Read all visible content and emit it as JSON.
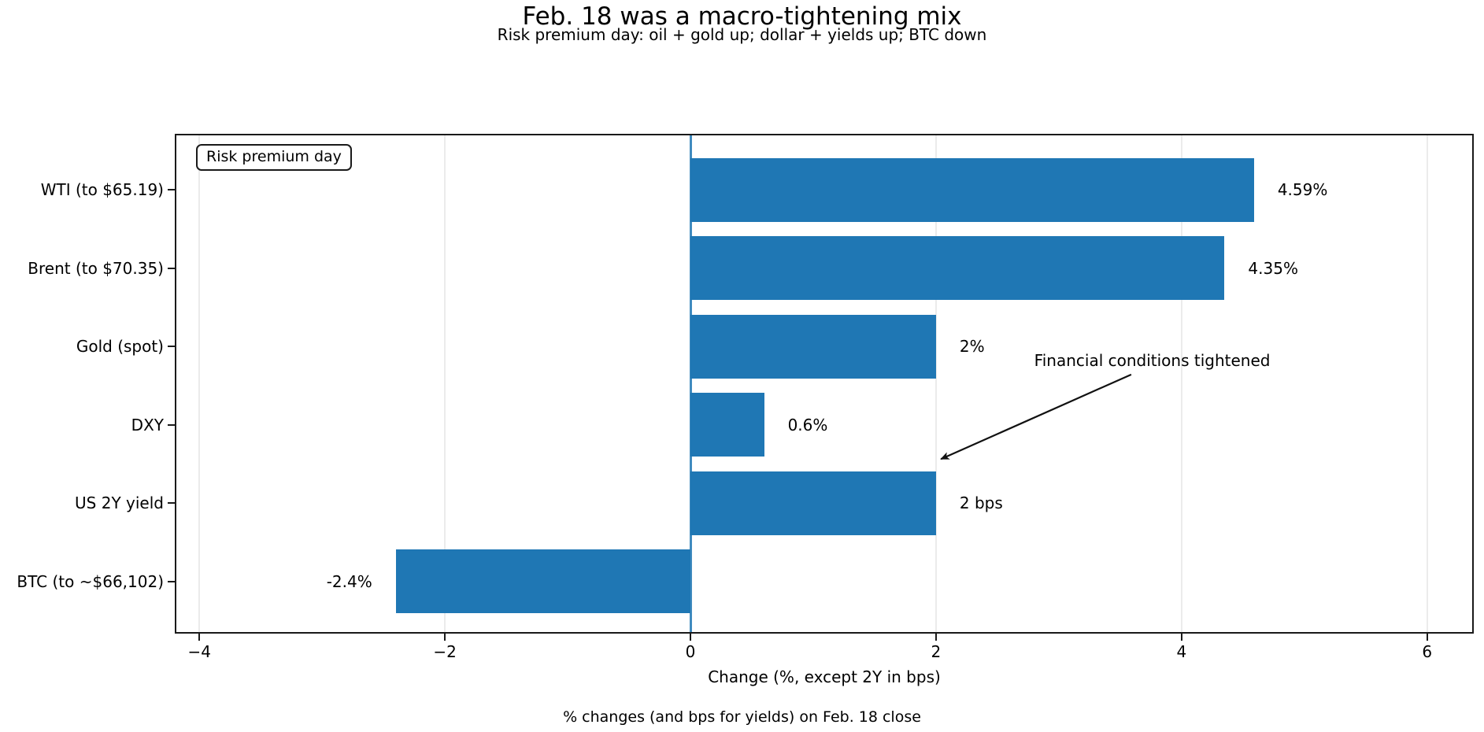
{
  "title": "Feb. 18 was a macro-tightening mix",
  "subtitle": "Risk premium day: oil + gold up; dollar + yields up; BTC down",
  "footer": "% changes (and bps for yields) on Feb. 18 close",
  "chart_data": {
    "type": "bar",
    "orientation": "horizontal",
    "title": "Feb. 18 was a macro-tightening mix",
    "subtitle": "Risk premium day: oil + gold up; dollar + yields up; BTC down",
    "categories": [
      "WTI (to $65.19)",
      "Brent (to $70.35)",
      "Gold (spot)",
      "DXY",
      "US 2Y yield",
      "BTC (to ~$66,102)"
    ],
    "values": [
      4.59,
      4.35,
      2.0,
      0.6,
      2.0,
      -2.4
    ],
    "value_labels": [
      "4.59%",
      "4.35%",
      "2%",
      "0.6%",
      "2 bps",
      "-2.4%"
    ],
    "xlabel": "Change (%, except 2Y in bps)",
    "ylabel": "",
    "xlim": [
      -4.2,
      6.38
    ],
    "x_ticks": [
      {
        "value": -4,
        "label": "−4"
      },
      {
        "value": -2,
        "label": "−2"
      },
      {
        "value": 0,
        "label": "0"
      },
      {
        "value": 2,
        "label": "2"
      },
      {
        "value": 4,
        "label": "4"
      },
      {
        "value": 6,
        "label": "6"
      }
    ],
    "grid": "vertical-light",
    "legend_label": "Risk premium day",
    "legend_position": "upper-left",
    "annotation": {
      "text": "Financial conditions tightened",
      "text_x": 2.8,
      "text_row": 2.18,
      "arrow_from_x": 3.59,
      "arrow_from_row": 2.36,
      "arrow_tip_x": 2.04,
      "arrow_tip_row": 3.44
    },
    "bar_color": "#1f77b4",
    "zero_line_color": "#1f77b4",
    "grid_color": "#ebebeb",
    "axis_color": "#1a1a1a"
  }
}
